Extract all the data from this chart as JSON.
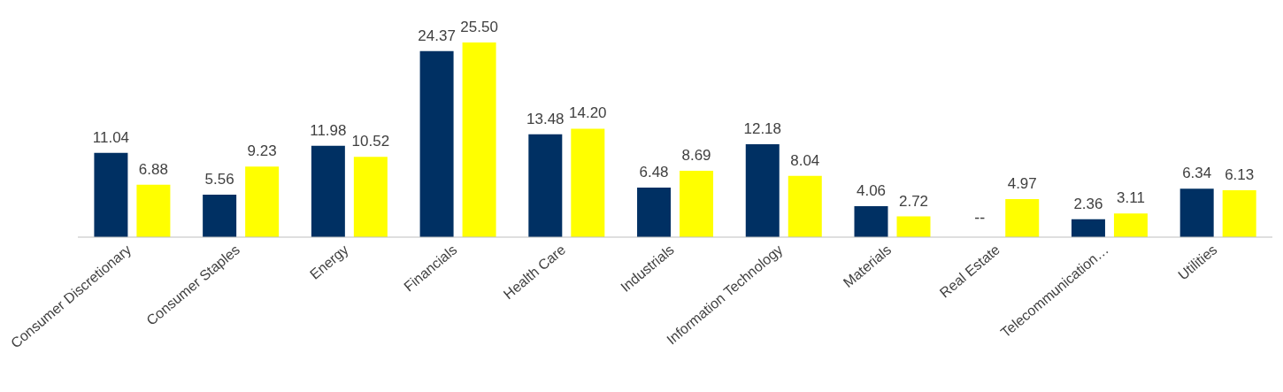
{
  "chart_data": {
    "type": "bar",
    "categories": [
      "Consumer Discretionary",
      "Consumer Staples",
      "Energy",
      "Financials",
      "Health Care",
      "Industrials",
      "Information Technology",
      "Materials",
      "Real Estate",
      "Telecommunication…",
      "Utilities"
    ],
    "series": [
      {
        "color": "#003063",
        "values": [
          11.04,
          5.56,
          11.98,
          24.37,
          13.48,
          6.48,
          12.18,
          4.06,
          null,
          2.36,
          6.34
        ],
        "value_labels": [
          "11.04",
          "5.56",
          "11.98",
          "24.37",
          "13.48",
          "6.48",
          "12.18",
          "4.06",
          "--",
          "2.36",
          "6.34"
        ]
      },
      {
        "color": "#ffff00",
        "values": [
          6.88,
          9.23,
          10.52,
          25.5,
          14.2,
          8.69,
          8.04,
          2.72,
          4.97,
          3.11,
          6.13
        ],
        "value_labels": [
          "6.88",
          "9.23",
          "10.52",
          "25.50",
          "14.20",
          "8.69",
          "8.04",
          "2.72",
          "4.97",
          "3.11",
          "6.13"
        ]
      }
    ],
    "grid": false,
    "legend": false
  }
}
